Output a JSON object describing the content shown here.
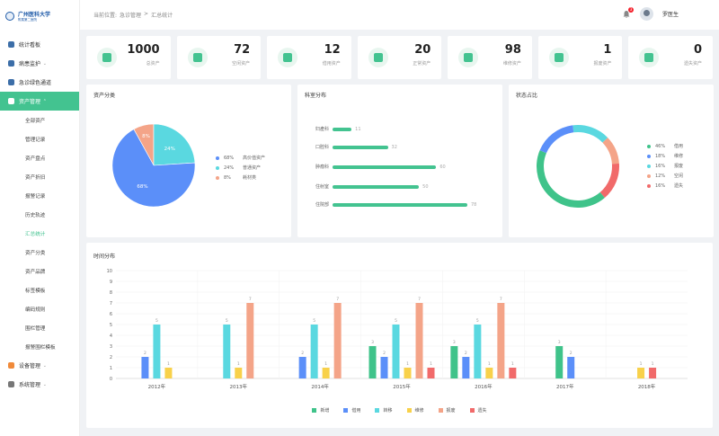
{
  "app": {
    "logo_text": "广州医科大学",
    "logo_sub": "附属第二医院"
  },
  "header": {
    "breadcrumb_prefix": "当前位置:",
    "breadcrumb_1": "急诊管理",
    "breadcrumb_sep": ">",
    "breadcrumb_2": "汇总统计",
    "notification_count": "3",
    "username": "罗医生"
  },
  "sidebar": {
    "items": [
      {
        "label": "统计看板",
        "icon": "dashboard-icon"
      },
      {
        "label": "病患监护",
        "icon": "patient-icon",
        "chevron": "⌄"
      },
      {
        "label": "急诊绿色通道",
        "icon": "ambulance-icon",
        "chevron": "⌄"
      },
      {
        "label": "资产管理",
        "icon": "asset-icon",
        "chevron": "⌃"
      }
    ],
    "submenu": [
      "全部资产",
      "管理记录",
      "资产盘点",
      "资产折旧",
      "报警记录",
      "历史轨迹",
      "汇总统计",
      "资产分类",
      "资产品牌",
      "标签模板",
      "编码规则",
      "围栏管理",
      "报警围栏模板"
    ],
    "bottom_items": [
      {
        "label": "设备管理",
        "icon": "device-icon",
        "chevron": "⌄"
      },
      {
        "label": "系统管理",
        "icon": "settings-icon",
        "chevron": "⌄"
      }
    ]
  },
  "stats": [
    {
      "value": "1000",
      "label": "总资产",
      "icon": "layers-icon"
    },
    {
      "value": "72",
      "label": "空闲资产",
      "icon": "cup-icon"
    },
    {
      "value": "12",
      "label": "借用资产",
      "icon": "hand-icon"
    },
    {
      "value": "20",
      "label": "正常资产",
      "icon": "thumb-icon"
    },
    {
      "value": "98",
      "label": "维修资产",
      "icon": "wrench-icon"
    },
    {
      "value": "1",
      "label": "报废资产",
      "icon": "trash-icon"
    },
    {
      "value": "0",
      "label": "遗失资产",
      "icon": "box-icon"
    }
  ],
  "asset_class": {
    "title": "资产分类",
    "legend": [
      {
        "pct": "68%",
        "label": "高价值资产",
        "color": "#5b8ff9"
      },
      {
        "pct": "24%",
        "label": "普通资产",
        "color": "#5ad8e0"
      },
      {
        "pct": "8%",
        "label": "耗材类",
        "color": "#f4a488"
      }
    ],
    "slice_labels": [
      "68%",
      "24%",
      "8%"
    ]
  },
  "dept_dist": {
    "title": "科室分布",
    "rows": [
      {
        "label": "妇產科",
        "value": "11"
      },
      {
        "label": "口腔科",
        "value": "32"
      },
      {
        "label": "肿瘤科",
        "value": "60"
      },
      {
        "label": "住射室",
        "value": "50"
      },
      {
        "label": "住院部",
        "value": "78"
      }
    ]
  },
  "status_share": {
    "title": "状态占比",
    "legend": [
      {
        "pct": "46%",
        "label": "借用",
        "color": "#3fc38a"
      },
      {
        "pct": "18%",
        "label": "维修",
        "color": "#5b8ff9"
      },
      {
        "pct": "16%",
        "label": "报废",
        "color": "#5ad8e0"
      },
      {
        "pct": "12%",
        "label": "空闲",
        "color": "#f4a488"
      },
      {
        "pct": "16%",
        "label": "遗失",
        "color": "#f16a6a"
      }
    ]
  },
  "time_dist": {
    "title": "时间分布"
  },
  "chart_data": [
    {
      "type": "pie",
      "title": "资产分类",
      "categories": [
        "高价值资产",
        "普通资产",
        "耗材类"
      ],
      "values": [
        68,
        24,
        8
      ],
      "colors": [
        "#5b8ff9",
        "#5ad8e0",
        "#f4a488"
      ]
    },
    {
      "type": "bar",
      "title": "科室分布",
      "categories": [
        "妇產科",
        "口腔科",
        "肿瘤科",
        "住射室",
        "住院部"
      ],
      "values": [
        11,
        32,
        60,
        50,
        78
      ]
    },
    {
      "type": "pie",
      "title": "状态占比",
      "categories": [
        "借用",
        "维修",
        "报废",
        "空闲",
        "遗失"
      ],
      "values": [
        46,
        18,
        16,
        12,
        16
      ],
      "colors": [
        "#3fc38a",
        "#5b8ff9",
        "#5ad8e0",
        "#f4a488",
        "#f16a6a"
      ]
    },
    {
      "type": "bar",
      "title": "时间分布",
      "categories": [
        "2012年",
        "2013年",
        "2014年",
        "2015年",
        "2016年",
        "2017年",
        "2018年"
      ],
      "ylim": [
        0,
        10
      ],
      "yticks": [
        0,
        1,
        2,
        3,
        4,
        5,
        6,
        7,
        8,
        9,
        10
      ],
      "series": [
        {
          "name": "新增",
          "color": "#3fc38a",
          "values": [
            null,
            null,
            null,
            3,
            3,
            3,
            null
          ]
        },
        {
          "name": "借用",
          "color": "#5b8ff9",
          "values": [
            2,
            null,
            2,
            2,
            2,
            2,
            null
          ]
        },
        {
          "name": "转移",
          "color": "#5ad8e0",
          "values": [
            5,
            5,
            5,
            5,
            5,
            null,
            null
          ]
        },
        {
          "name": "维修",
          "color": "#f8d14a",
          "values": [
            1,
            1,
            1,
            1,
            1,
            null,
            1
          ]
        },
        {
          "name": "报废",
          "color": "#f4a488",
          "values": [
            null,
            7,
            7,
            7,
            7,
            null,
            null
          ]
        },
        {
          "name": "遗失",
          "color": "#f16a6a",
          "values": [
            null,
            null,
            null,
            1,
            1,
            null,
            1
          ]
        }
      ]
    }
  ]
}
